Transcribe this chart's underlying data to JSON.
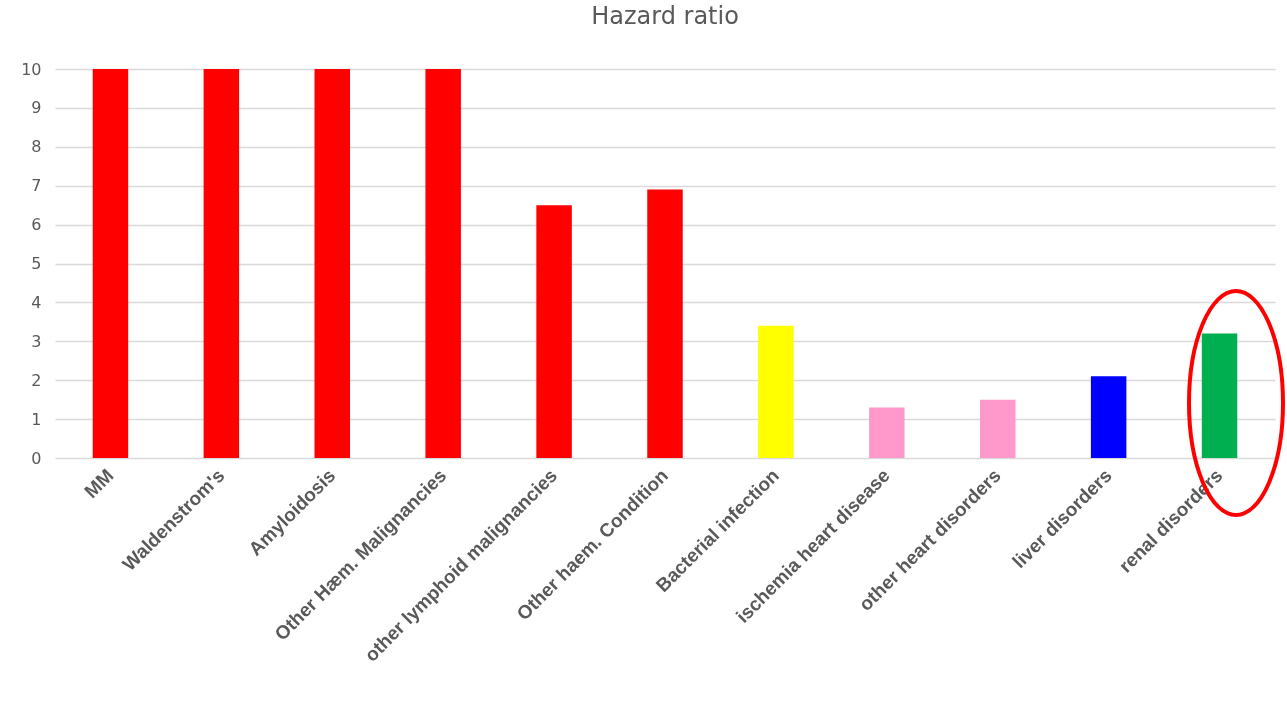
{
  "chart_data": {
    "type": "bar",
    "title": "Hazard ratio",
    "categories": [
      "MM",
      "Waldenstrom's",
      "Amyloidosis",
      "Other Hæm. Malignancies",
      "other lymphoid malignancies",
      "Other haem. Condition",
      "Bacterial infection",
      "ischemia heart disease",
      "other heart disorders",
      "liver disorders",
      "renal disorders"
    ],
    "values": [
      10,
      10,
      10,
      10,
      6.5,
      6.9,
      3.4,
      1.3,
      1.5,
      2.1,
      3.2
    ],
    "colors": [
      "#ff0000",
      "#ff0000",
      "#ff0000",
      "#ff0000",
      "#ff0000",
      "#ff0000",
      "#ffff00",
      "#ff99cc",
      "#ff99cc",
      "#0000ff",
      "#00b050"
    ],
    "ylim": [
      0,
      10
    ],
    "yticks": [
      0,
      1,
      2,
      3,
      4,
      5,
      6,
      7,
      8,
      9,
      10
    ],
    "grid": "y"
  }
}
